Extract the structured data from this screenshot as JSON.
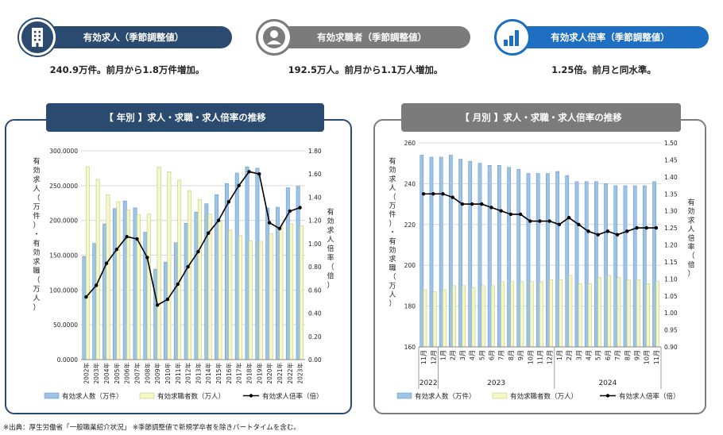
{
  "kpis": [
    {
      "label": "有効求人（季節調整値）",
      "text": "240.9万件。前月から1.8万件増加。",
      "color": "#2b4a6f",
      "icon": "building-icon"
    },
    {
      "label": "有効求職者（季節調整値）",
      "text": "192.5万人。前月から1.1万人増加。",
      "color": "#7b7b7b",
      "icon": "person-icon"
    },
    {
      "label": "有効求人倍率（季節調整値）",
      "text": "1.25倍。前月と同水準。",
      "color": "#1e6fc2",
      "icon": "bar-chart-icon"
    }
  ],
  "panels": {
    "annual_title": "【 年別 】求人・求職・求人倍率の推移",
    "monthly_title": "【 月別 】求人・求職・求人倍率の推移"
  },
  "footnote": "※出典：厚生労働省「一般職業紹介状況」 ※季節調整値で新規学卒者を除きパートタイムを含む。",
  "colors": {
    "offers": "#9dc3e6",
    "seekers": "#f4f7c6",
    "ratio": "#000000",
    "navy": "#2b4a6f",
    "gray": "#7b7b7b"
  },
  "chart_data": [
    {
      "type": "bar",
      "title": "【 年別 】求人・求職・求人倍率の推移",
      "categories": [
        "2002年",
        "2003年",
        "2004年",
        "2005年",
        "2006年",
        "2007年",
        "2008年",
        "2009年",
        "2010年",
        "2011年",
        "2012年",
        "2013年",
        "2014年",
        "2015年",
        "2016年",
        "2017年",
        "2018年",
        "2019年",
        "2020年",
        "2021年",
        "2022年",
        "2023年"
      ],
      "ylabel": "有効求人（万件）・有効求職（万人）",
      "y2label": "有効求人倍率（倍）",
      "yticks": [
        "300.0000",
        "250.0000",
        "200.0000",
        "150.0000",
        "100.0000",
        "50.0000",
        "0.0000"
      ],
      "y2ticks": [
        "1.80",
        "1.60",
        "1.40",
        "1.20",
        "1.00",
        "0.80",
        "0.60",
        "0.40",
        "0.20",
        "0.00"
      ],
      "ylim": [
        0,
        300
      ],
      "y2lim": [
        0,
        1.8
      ],
      "series": [
        {
          "name": "有効求人数（万件）",
          "values": [
            148,
            167,
            195,
            217,
            228,
            218,
            183,
            130,
            140,
            168,
            196,
            212,
            224,
            237,
            253,
            268,
            277,
            275,
            218,
            219,
            247,
            249
          ]
        },
        {
          "name": "有効求職者数（万人）",
          "values": [
            277,
            259,
            237,
            227,
            215,
            208,
            209,
            277,
            270,
            258,
            243,
            230,
            209,
            199,
            186,
            178,
            171,
            170,
            181,
            193,
            195,
            192
          ]
        },
        {
          "name": "有効求人倍率（倍）",
          "values": [
            0.54,
            0.64,
            0.83,
            0.95,
            1.06,
            1.04,
            0.88,
            0.47,
            0.52,
            0.65,
            0.8,
            0.93,
            1.09,
            1.2,
            1.36,
            1.5,
            1.62,
            1.6,
            1.18,
            1.13,
            1.28,
            1.31
          ]
        }
      ],
      "legend": [
        "有効求人数（万件）",
        "有効求職者数（万人）",
        "有効求人倍率（倍）"
      ],
      "legend_position": "bottom"
    },
    {
      "type": "bar",
      "title": "【 月別 】求人・求職・求人倍率の推移",
      "categories": [
        "11月",
        "12月",
        "1月",
        "2月",
        "3月",
        "4月",
        "5月",
        "6月",
        "7月",
        "8月",
        "9月",
        "10月",
        "11月",
        "12月",
        "1月",
        "2月",
        "3月",
        "4月",
        "5月",
        "6月",
        "7月",
        "8月",
        "9月",
        "10月",
        "11月"
      ],
      "years": [
        "2022",
        "2023",
        "2024"
      ],
      "ylabel": "有効求人（万件）・有効求職（万人）",
      "y2label": "有効求人倍率（倍）",
      "yticks": [
        "260",
        "240",
        "220",
        "200",
        "180",
        "160"
      ],
      "y2ticks": [
        "1.50",
        "1.45",
        "1.40",
        "1.35",
        "1.30",
        "1.25",
        "1.20",
        "1.15",
        "1.10",
        "1.05",
        "1.00",
        "0.95",
        "0.90"
      ],
      "ylim": [
        160,
        260
      ],
      "y2lim": [
        0.9,
        1.5
      ],
      "series": [
        {
          "name": "有効求人数（万件）",
          "values": [
            254,
            253,
            253,
            254,
            252,
            251,
            250,
            249,
            249,
            248,
            247,
            245,
            245,
            245,
            246,
            244,
            241,
            241,
            241,
            240,
            239,
            239,
            239,
            239,
            241
          ]
        },
        {
          "name": "有効求職者数（万人）",
          "values": [
            188,
            187,
            188,
            190,
            190,
            189,
            190,
            190,
            192,
            192,
            192,
            192,
            192,
            193,
            193,
            195,
            191,
            191,
            194,
            195,
            194,
            193,
            193,
            191,
            192
          ]
        },
        {
          "name": "有効求人倍率（倍）",
          "values": [
            1.35,
            1.35,
            1.35,
            1.34,
            1.32,
            1.32,
            1.32,
            1.31,
            1.3,
            1.29,
            1.29,
            1.27,
            1.27,
            1.27,
            1.26,
            1.28,
            1.26,
            1.24,
            1.23,
            1.24,
            1.23,
            1.24,
            1.25,
            1.25,
            1.25
          ]
        }
      ],
      "legend": [
        "有効求人数（万件）",
        "有効求職者数（万人）",
        "有効求人倍率（倍）"
      ],
      "legend_position": "bottom"
    }
  ]
}
